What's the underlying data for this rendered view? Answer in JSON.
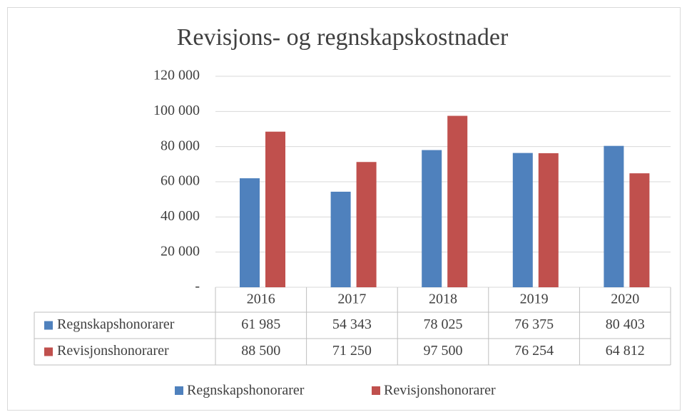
{
  "chart_data": {
    "type": "bar",
    "title": "Revisjons- og regnskapskostnader",
    "categories": [
      "2016",
      "2017",
      "2018",
      "2019",
      "2020"
    ],
    "series": [
      {
        "name": "Regnskapshonorarer",
        "color": "#4f81bd",
        "values": [
          61985,
          54343,
          78025,
          76375,
          80403
        ],
        "value_labels": [
          "61 985",
          "54 343",
          "78 025",
          "76 375",
          "80 403"
        ]
      },
      {
        "name": "Revisjonshonorarer",
        "color": "#c0504d",
        "values": [
          88500,
          71250,
          97500,
          76254,
          64812
        ],
        "value_labels": [
          "88 500",
          "71 250",
          "97 500",
          "76 254",
          "64 812"
        ]
      }
    ],
    "ylim": [
      0,
      120000
    ],
    "yticks": [
      {
        "value": 0,
        "label": "-"
      },
      {
        "value": 20000,
        "label": "20 000"
      },
      {
        "value": 40000,
        "label": "40 000"
      },
      {
        "value": 60000,
        "label": "60 000"
      },
      {
        "value": 80000,
        "label": "80 000"
      },
      {
        "value": 100000,
        "label": "100 000"
      },
      {
        "value": 120000,
        "label": "120 000"
      }
    ],
    "grid": true,
    "legend": "bottom",
    "data_table": true
  }
}
